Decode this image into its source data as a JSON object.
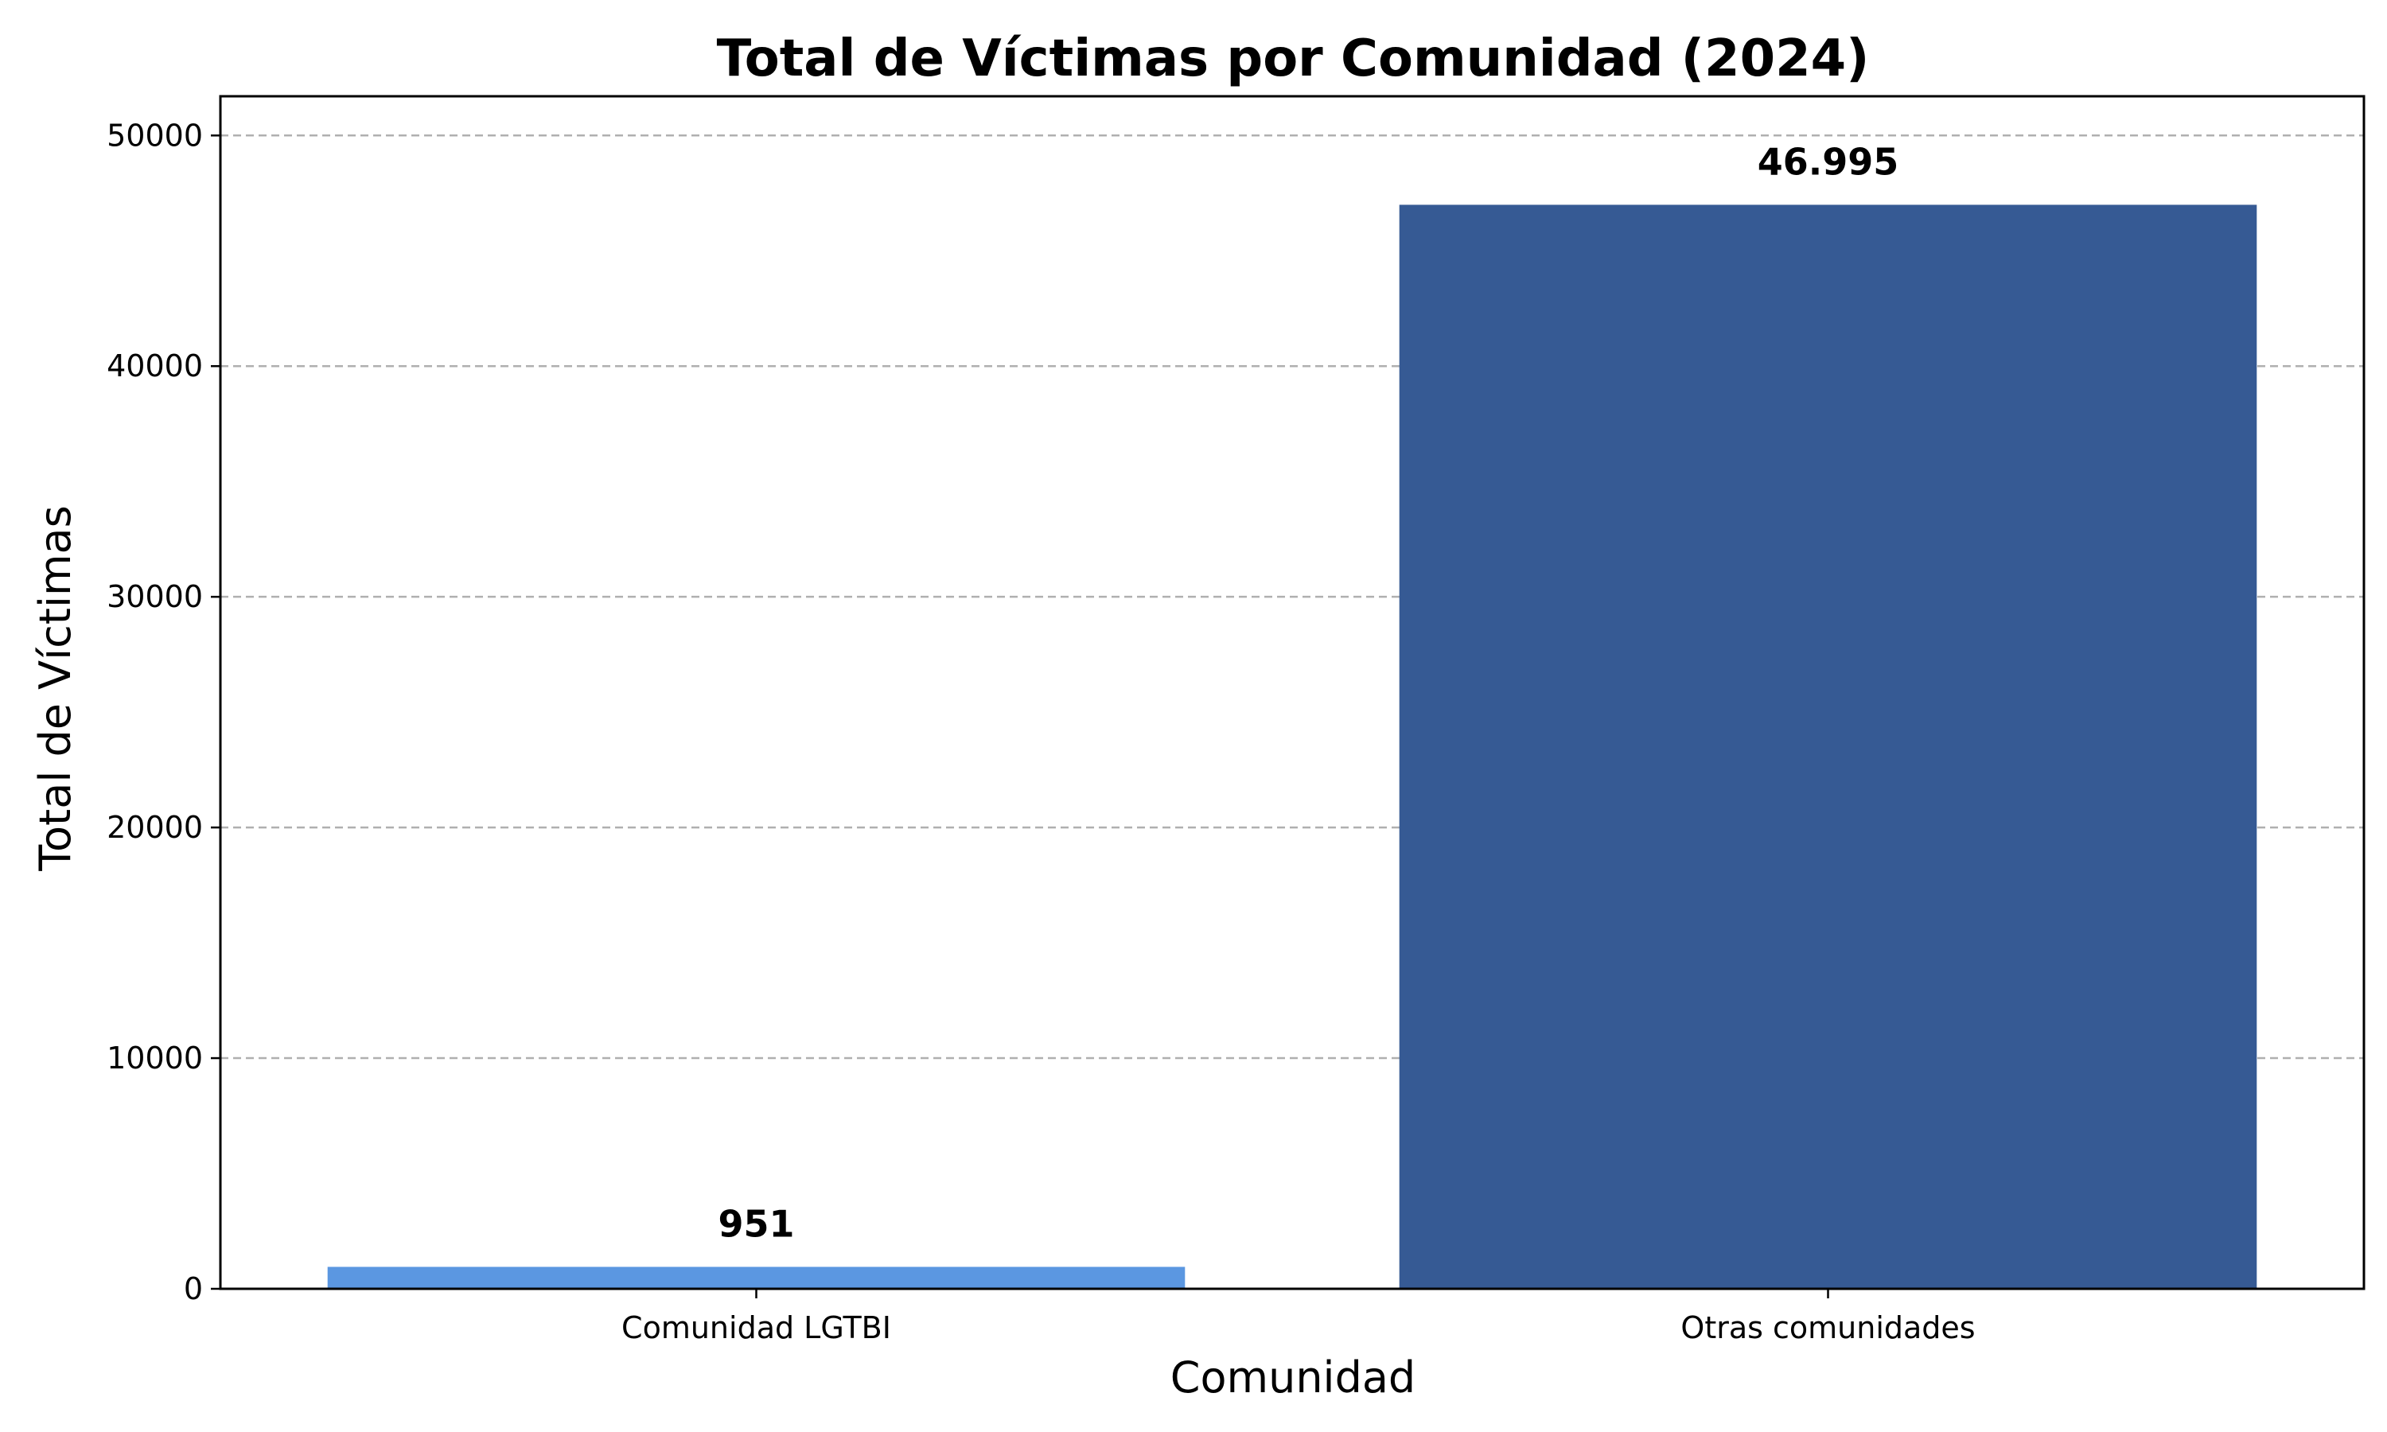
{
  "chart_data": {
    "type": "bar",
    "title": "Total de Víctimas por Comunidad (2024)",
    "xlabel": "Comunidad",
    "ylabel": "Total de Víctimas",
    "categories": [
      "Comunidad LGTBI",
      "Otras comunidades"
    ],
    "values": [
      951,
      46995
    ],
    "value_labels": [
      "951",
      "46.995"
    ],
    "colors": [
      "#5b97e1",
      "#365a94"
    ],
    "ylim": [
      0,
      51700
    ],
    "yticks": [
      0,
      10000,
      20000,
      30000,
      40000,
      50000
    ],
    "ytick_labels": [
      "0",
      "10000",
      "20000",
      "30000",
      "40000",
      "50000"
    ],
    "grid": "horizontal dashed",
    "legend": "none"
  }
}
